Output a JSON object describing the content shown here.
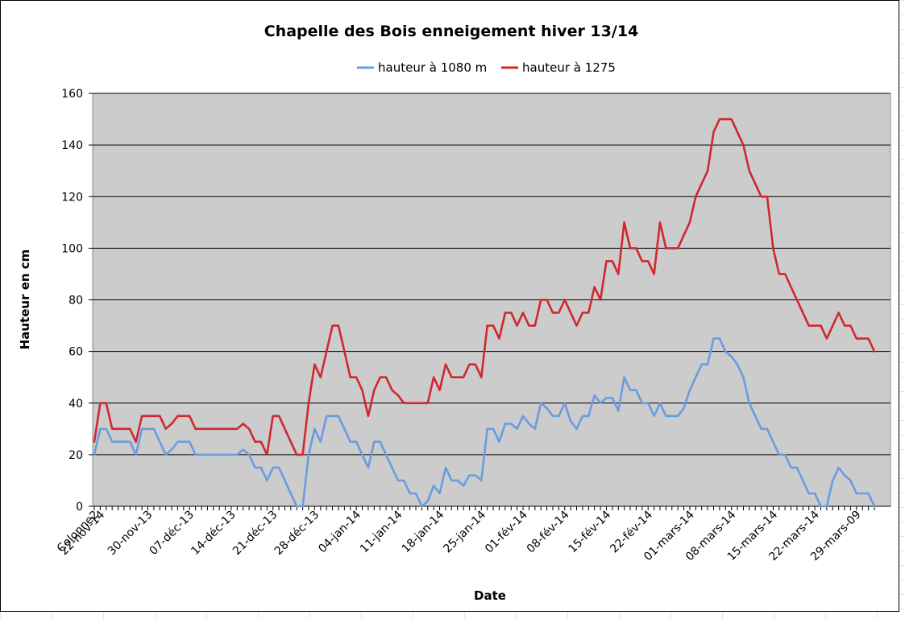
{
  "chart_data": {
    "type": "line",
    "title": "Chapelle des Bois enneigement hiver 13/14",
    "xlabel": "Date",
    "ylabel": "Hauteur en cm",
    "ylim": [
      0,
      160
    ],
    "yticks": [
      0,
      20,
      40,
      60,
      80,
      100,
      120,
      140,
      160
    ],
    "grid": true,
    "legend_position": "top",
    "x_tick_labels": [
      "Colonne2",
      "22-nov-14",
      "30-nov-13",
      "07-déc-13",
      "14-déc-13",
      "21-déc-13",
      "28-déc-13",
      "04-jan-14",
      "11-jan-14",
      "18-jan-14",
      "25-jan-14",
      "01-fév-14",
      "08-fév-14",
      "15-fév-14",
      "22-fév-14",
      "01-mars-14",
      "08-mars-14",
      "15-mars-14",
      "22-mars-14",
      "29-mars-09"
    ],
    "x_tick_index": [
      0,
      1,
      9,
      16,
      23,
      30,
      37,
      44,
      51,
      58,
      65,
      72,
      79,
      86,
      93,
      100,
      107,
      114,
      121,
      128
    ],
    "series": [
      {
        "name": "hauteur à 1080 m",
        "color": "#6b9be0",
        "values": [
          20,
          30,
          30,
          25,
          25,
          25,
          25,
          20,
          30,
          30,
          30,
          25,
          20,
          22,
          25,
          25,
          25,
          20,
          20,
          20,
          20,
          20,
          20,
          20,
          20,
          22,
          20,
          15,
          15,
          10,
          15,
          15,
          10,
          5,
          0,
          0,
          20,
          30,
          25,
          35,
          35,
          35,
          30,
          25,
          25,
          20,
          15,
          25,
          25,
          20,
          15,
          10,
          10,
          5,
          5,
          0,
          2,
          8,
          5,
          15,
          10,
          10,
          8,
          12,
          12,
          10,
          30,
          30,
          25,
          32,
          32,
          30,
          35,
          32,
          30,
          40,
          38,
          35,
          35,
          40,
          33,
          30,
          35,
          35,
          43,
          40,
          42,
          42,
          37,
          50,
          45,
          45,
          40,
          40,
          35,
          40,
          35,
          35,
          35,
          38,
          45,
          50,
          55,
          55,
          65,
          65,
          60,
          58,
          55,
          50,
          40,
          35,
          30,
          30,
          25,
          20,
          20,
          15,
          15,
          10,
          5,
          5,
          0,
          0,
          10,
          15,
          12,
          10,
          5,
          5,
          5,
          0
        ]
      },
      {
        "name": "hauteur à 1275",
        "color": "#d0282e",
        "values": [
          25,
          40,
          40,
          30,
          30,
          30,
          30,
          25,
          35,
          35,
          35,
          35,
          30,
          32,
          35,
          35,
          35,
          30,
          30,
          30,
          30,
          30,
          30,
          30,
          30,
          32,
          30,
          25,
          25,
          20,
          35,
          35,
          30,
          25,
          20,
          20,
          40,
          55,
          50,
          60,
          70,
          70,
          60,
          50,
          50,
          45,
          35,
          45,
          50,
          50,
          45,
          43,
          40,
          40,
          40,
          40,
          40,
          50,
          45,
          55,
          50,
          50,
          50,
          55,
          55,
          50,
          70,
          70,
          65,
          75,
          75,
          70,
          75,
          70,
          70,
          80,
          80,
          75,
          75,
          80,
          75,
          70,
          75,
          75,
          85,
          80,
          95,
          95,
          90,
          110,
          100,
          100,
          95,
          95,
          90,
          110,
          100,
          100,
          100,
          105,
          110,
          120,
          125,
          130,
          145,
          150,
          150,
          150,
          145,
          140,
          130,
          125,
          120,
          120,
          100,
          90,
          90,
          85,
          80,
          75,
          70,
          70,
          70,
          65,
          70,
          75,
          70,
          70,
          65,
          65,
          65,
          60
        ]
      }
    ]
  }
}
